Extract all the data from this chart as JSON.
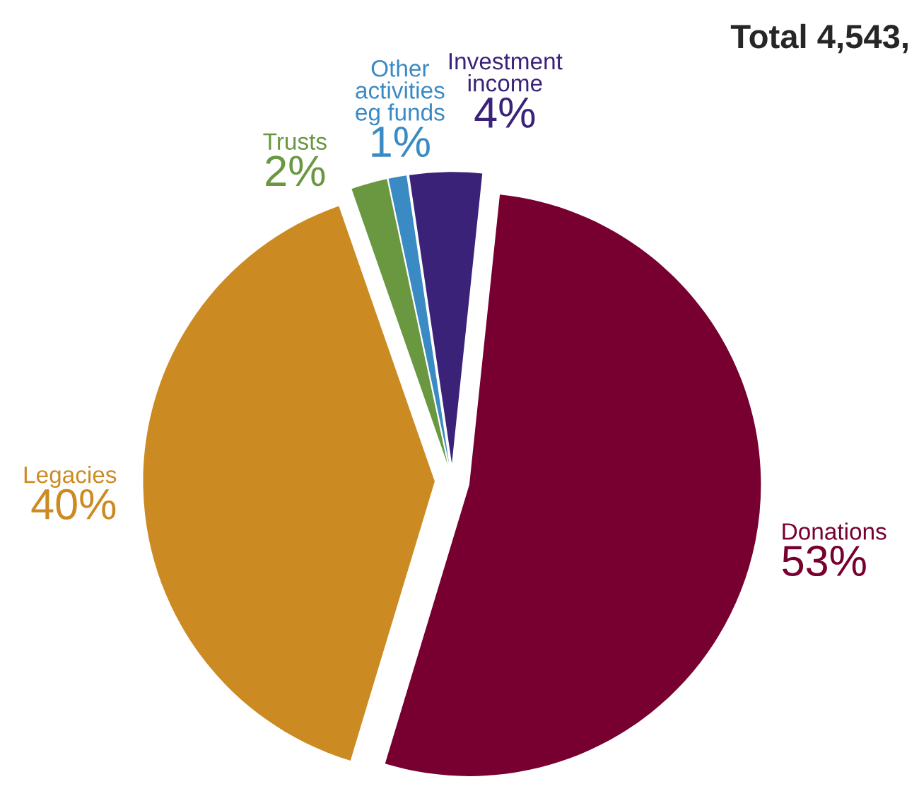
{
  "chart_data": {
    "type": "pie",
    "title": "Total 4,543,",
    "categories": [
      "Donations",
      "Legacies",
      "Trusts",
      "Other\nactivities\neg funds",
      "Investment\nincome"
    ],
    "values": [
      53,
      40,
      2,
      1,
      4
    ],
    "value_labels": [
      "53%",
      "40%",
      "2%",
      "1%",
      "4%"
    ],
    "colors": [
      "#770030",
      "#cc8a22",
      "#6a9840",
      "#3a8ac4",
      "#3a2278"
    ]
  }
}
